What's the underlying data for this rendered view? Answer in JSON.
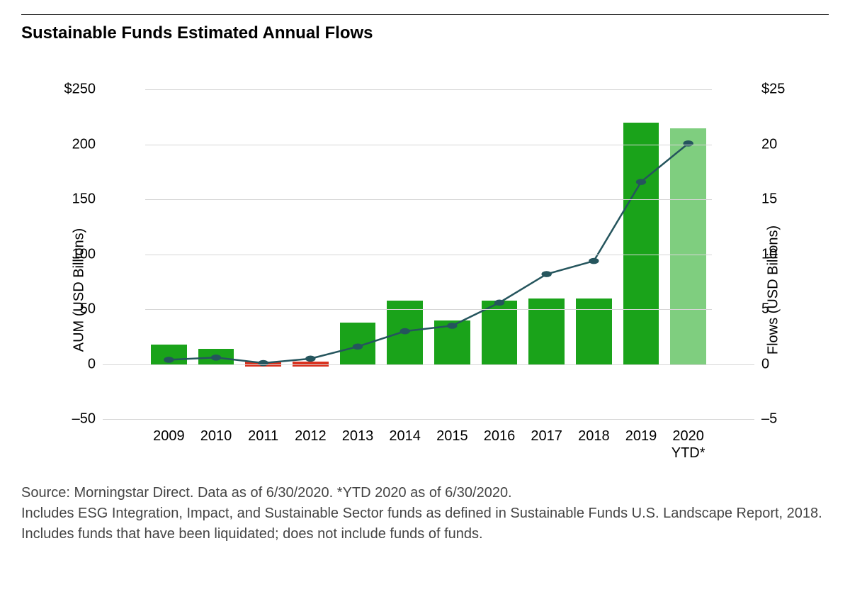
{
  "title": "Sustainable Funds Estimated Annual Flows",
  "chart": {
    "type": "bar+line",
    "background_color": "#ffffff",
    "grid_color": "#d6d6d6",
    "title_fontsize": 24,
    "axis_label_fontsize": 20,
    "tick_fontsize": 20,
    "left_axis": {
      "label": "AUM (USD Billions)",
      "min": -50,
      "max": 260,
      "ticks": [
        {
          "v": 250,
          "label": "$250"
        },
        {
          "v": 200,
          "label": "200"
        },
        {
          "v": 150,
          "label": "150"
        },
        {
          "v": 100,
          "label": "100"
        },
        {
          "v": 50,
          "label": "50"
        },
        {
          "v": 0,
          "label": "0"
        },
        {
          "v": -50,
          "label": "–50"
        }
      ]
    },
    "right_axis": {
      "label": "Flows (USD Billions)",
      "min": -5,
      "max": 26,
      "ticks": [
        {
          "v": 25,
          "label": "$25"
        },
        {
          "v": 20,
          "label": "20"
        },
        {
          "v": 15,
          "label": "15"
        },
        {
          "v": 10,
          "label": "10"
        },
        {
          "v": 5,
          "label": "5"
        },
        {
          "v": 0,
          "label": "0"
        },
        {
          "v": -5,
          "label": "–5"
        }
      ]
    },
    "categories": [
      "2009",
      "2010",
      "2011",
      "2012",
      "2013",
      "2014",
      "2015",
      "2016",
      "2017",
      "2018",
      "2019",
      "2020 YTD*"
    ],
    "bars": {
      "values": [
        18,
        14,
        -8,
        -8,
        38,
        58,
        40,
        58,
        60,
        60,
        220,
        215
      ],
      "colors": [
        "#1aa31a",
        "#1aa31a",
        "#d9321f",
        "#d9321f",
        "#1aa31a",
        "#1aa31a",
        "#1aa31a",
        "#1aa31a",
        "#1aa31a",
        "#1aa31a",
        "#1aa31a",
        "#7fce7f"
      ],
      "bar_width_ratio": 0.76,
      "neg_half_height": true
    },
    "line": {
      "values": [
        0.4,
        0.6,
        0.1,
        0.5,
        1.6,
        3.0,
        3.5,
        5.6,
        8.2,
        9.4,
        16.6,
        20.1
      ],
      "stroke": "#25555d",
      "stroke_width": 2.5,
      "marker_fill": "#25555d",
      "marker_radius": 7
    }
  },
  "footer_lines": [
    "Source: Morningstar Direct. Data as of 6/30/2020. *YTD 2020 as of 6/30/2020.",
    "Includes ESG Integration, Impact, and Sustainable Sector funds as defined in Sustainable Funds U.S. Landscape Report, 2018. Includes funds that have been liquidated; does not include funds of funds."
  ]
}
